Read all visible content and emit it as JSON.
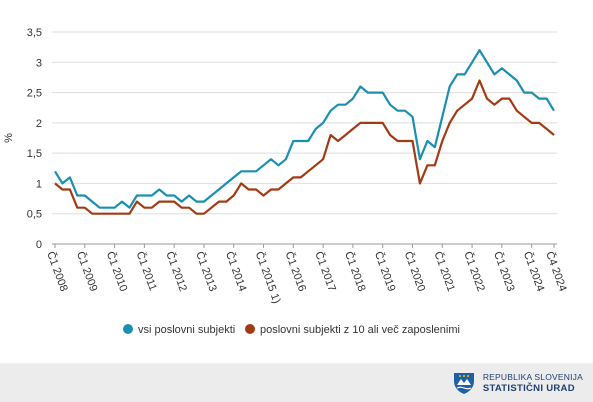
{
  "chart_data": {
    "type": "line",
    "ylabel": "%",
    "ylim": [
      0,
      3.5
    ],
    "y_ticks": [
      "0",
      "0,5",
      "1",
      "1,5",
      "2",
      "2,5",
      "3",
      "3,5"
    ],
    "x_ticks": [
      {
        "label": "Č1 2008",
        "index": 0
      },
      {
        "label": "Č1 2009",
        "index": 4
      },
      {
        "label": "Č1 2010",
        "index": 8
      },
      {
        "label": "Č1 2011",
        "index": 12
      },
      {
        "label": "Č1 2012",
        "index": 16
      },
      {
        "label": "Č1 2013",
        "index": 20
      },
      {
        "label": "Č1 2014",
        "index": 24
      },
      {
        "label": "Č1 2015 1)",
        "index": 28
      },
      {
        "label": "Č1 2016",
        "index": 32
      },
      {
        "label": "Č1 2017",
        "index": 36
      },
      {
        "label": "Č1 2018",
        "index": 40
      },
      {
        "label": "Č1 2019",
        "index": 44
      },
      {
        "label": "Č1 2020",
        "index": 48
      },
      {
        "label": "Č1 2021",
        "index": 52
      },
      {
        "label": "Č1 2022",
        "index": 56
      },
      {
        "label": "Č1 2023",
        "index": 60
      },
      {
        "label": "Č1 2024",
        "index": 64
      },
      {
        "label": "Č4 2024",
        "index": 67
      }
    ],
    "grid": true,
    "legend_position": "bottom",
    "series": [
      {
        "name": "vsi poslovni subjekti",
        "color": "#1a8fb0",
        "values": [
          1.2,
          1.0,
          1.1,
          0.8,
          0.8,
          0.7,
          0.6,
          0.6,
          0.6,
          0.7,
          0.6,
          0.8,
          0.8,
          0.8,
          0.9,
          0.8,
          0.8,
          0.7,
          0.8,
          0.7,
          0.7,
          0.8,
          0.9,
          1.0,
          1.1,
          1.2,
          1.2,
          1.2,
          1.3,
          1.4,
          1.3,
          1.4,
          1.7,
          1.7,
          1.7,
          1.9,
          2.0,
          2.2,
          2.3,
          2.3,
          2.4,
          2.6,
          2.5,
          2.5,
          2.5,
          2.3,
          2.2,
          2.2,
          2.1,
          1.4,
          1.7,
          1.6,
          2.1,
          2.6,
          2.8,
          2.8,
          3.0,
          3.2,
          3.0,
          2.8,
          2.9,
          2.8,
          2.7,
          2.5,
          2.5,
          2.4,
          2.4,
          2.2
        ]
      },
      {
        "name": "poslovni subjekti z 10 ali več zaposlenimi",
        "color": "#a23b14",
        "values": [
          1.0,
          0.9,
          0.9,
          0.6,
          0.6,
          0.5,
          0.5,
          0.5,
          0.5,
          0.5,
          0.5,
          0.7,
          0.6,
          0.6,
          0.7,
          0.7,
          0.7,
          0.6,
          0.6,
          0.5,
          0.5,
          0.6,
          0.7,
          0.7,
          0.8,
          1.0,
          0.9,
          0.9,
          0.8,
          0.9,
          0.9,
          1.0,
          1.1,
          1.1,
          1.2,
          1.3,
          1.4,
          1.8,
          1.7,
          1.8,
          1.9,
          2.0,
          2.0,
          2.0,
          2.0,
          1.8,
          1.7,
          1.7,
          1.7,
          1.0,
          1.3,
          1.3,
          1.7,
          2.0,
          2.2,
          2.3,
          2.4,
          2.7,
          2.4,
          2.3,
          2.4,
          2.4,
          2.2,
          2.1,
          2.0,
          2.0,
          1.9,
          1.8
        ]
      }
    ]
  },
  "branding": {
    "line1": "REPUBLIKA SLOVENIJA",
    "line2": "STATISTIČNI URAD"
  }
}
